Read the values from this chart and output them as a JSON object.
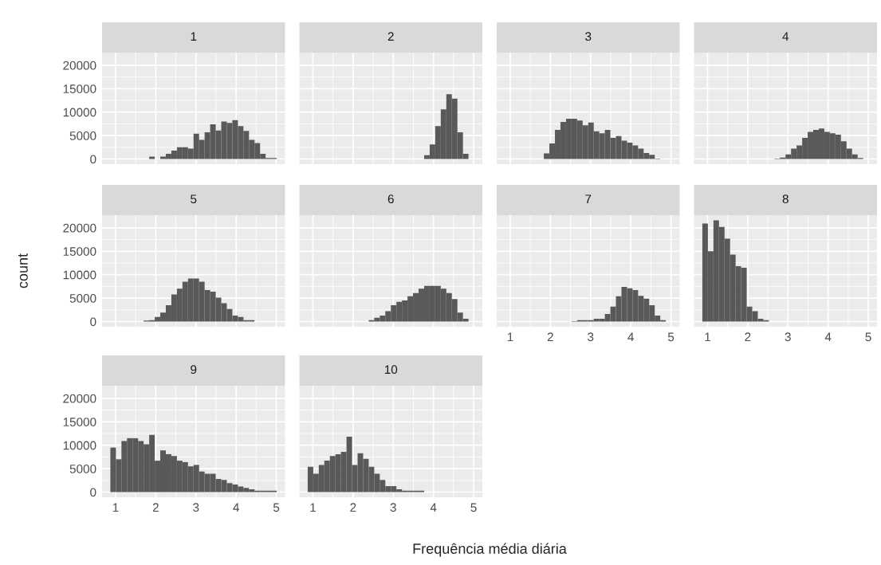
{
  "chart_data": [
    {
      "type": "histogram",
      "title": "1",
      "color": "#595959",
      "grid": true,
      "tick_labels": "y",
      "xlim": [
        0.663,
        5.217
      ],
      "ylim": [
        -1100,
        22700
      ],
      "xticks": [
        1,
        2,
        3,
        4,
        5
      ],
      "yticks": [
        0,
        5000,
        10000,
        15000,
        20000
      ],
      "bins": [
        0.87,
        1.008,
        1.146,
        1.284,
        1.422,
        1.56,
        1.698,
        1.836,
        1.974,
        2.112,
        2.25,
        2.388,
        2.526,
        2.664,
        2.802,
        2.94,
        3.078,
        3.216,
        3.354,
        3.492,
        3.63,
        3.768,
        3.906,
        4.044,
        4.182,
        4.32,
        4.458,
        4.596,
        4.734,
        4.872,
        5.01
      ],
      "values": [
        0,
        0,
        0,
        0,
        0,
        0,
        0,
        500,
        0,
        500,
        1100,
        1800,
        2500,
        2500,
        2200,
        5400,
        4100,
        5700,
        7400,
        6100,
        8000,
        7700,
        8300,
        7000,
        6000,
        4100,
        3400,
        1100,
        200,
        200
      ]
    },
    {
      "type": "histogram",
      "title": "2",
      "color": "#595959",
      "grid": true,
      "tick_labels": false,
      "xlim": [
        0.663,
        5.217
      ],
      "ylim": [
        -1100,
        22700
      ],
      "xticks": [
        1,
        2,
        3,
        4,
        5
      ],
      "yticks": [
        0,
        5000,
        10000,
        15000,
        20000
      ],
      "bins": [
        0.87,
        1.008,
        1.146,
        1.284,
        1.422,
        1.56,
        1.698,
        1.836,
        1.974,
        2.112,
        2.25,
        2.388,
        2.526,
        2.664,
        2.802,
        2.94,
        3.078,
        3.216,
        3.354,
        3.492,
        3.63,
        3.768,
        3.906,
        4.044,
        4.182,
        4.32,
        4.458,
        4.596,
        4.734,
        4.872,
        5.01
      ],
      "values": [
        0,
        0,
        0,
        0,
        0,
        0,
        0,
        0,
        0,
        0,
        0,
        0,
        0,
        0,
        0,
        0,
        0,
        0,
        0,
        0,
        0,
        800,
        3100,
        7000,
        10600,
        13800,
        12900,
        5700,
        1100,
        0
      ]
    },
    {
      "type": "histogram",
      "title": "3",
      "color": "#595959",
      "grid": true,
      "tick_labels": false,
      "xlim": [
        0.663,
        5.217
      ],
      "ylim": [
        -1100,
        22700
      ],
      "xticks": [
        1,
        2,
        3,
        4,
        5
      ],
      "yticks": [
        0,
        5000,
        10000,
        15000,
        20000
      ],
      "bins": [
        0.87,
        1.008,
        1.146,
        1.284,
        1.422,
        1.56,
        1.698,
        1.836,
        1.974,
        2.112,
        2.25,
        2.388,
        2.526,
        2.664,
        2.802,
        2.94,
        3.078,
        3.216,
        3.354,
        3.492,
        3.63,
        3.768,
        3.906,
        4.044,
        4.182,
        4.32,
        4.458,
        4.596,
        4.734,
        4.872,
        5.01
      ],
      "values": [
        0,
        0,
        0,
        0,
        0,
        0,
        0,
        1200,
        3300,
        6200,
        7900,
        8600,
        8600,
        8200,
        7200,
        7800,
        5900,
        5500,
        6200,
        4500,
        4900,
        3900,
        3500,
        2900,
        2200,
        1300,
        900,
        100,
        0,
        0
      ]
    },
    {
      "type": "histogram",
      "title": "4",
      "color": "#595959",
      "grid": true,
      "tick_labels": false,
      "xlim": [
        0.663,
        5.217
      ],
      "ylim": [
        -1100,
        22700
      ],
      "xticks": [
        1,
        2,
        3,
        4,
        5
      ],
      "yticks": [
        0,
        5000,
        10000,
        15000,
        20000
      ],
      "bins": [
        0.87,
        1.008,
        1.146,
        1.284,
        1.422,
        1.56,
        1.698,
        1.836,
        1.974,
        2.112,
        2.25,
        2.388,
        2.526,
        2.664,
        2.802,
        2.94,
        3.078,
        3.216,
        3.354,
        3.492,
        3.63,
        3.768,
        3.906,
        4.044,
        4.182,
        4.32,
        4.458,
        4.596,
        4.734,
        4.872,
        5.01
      ],
      "values": [
        0,
        0,
        0,
        0,
        0,
        0,
        0,
        0,
        0,
        0,
        0,
        0,
        0,
        100,
        300,
        1000,
        2200,
        2900,
        4500,
        5800,
        6200,
        6500,
        5800,
        5500,
        5200,
        3800,
        2200,
        1000,
        200,
        0
      ]
    },
    {
      "type": "histogram",
      "title": "5",
      "ylabel": "count",
      "color": "#595959",
      "grid": true,
      "tick_labels": "y",
      "xlim": [
        0.663,
        5.217
      ],
      "ylim": [
        -1100,
        22700
      ],
      "xticks": [
        1,
        2,
        3,
        4,
        5
      ],
      "yticks": [
        0,
        5000,
        10000,
        15000,
        20000
      ],
      "bins": [
        0.87,
        1.008,
        1.146,
        1.284,
        1.422,
        1.56,
        1.698,
        1.836,
        1.974,
        2.112,
        2.25,
        2.388,
        2.526,
        2.664,
        2.802,
        2.94,
        3.078,
        3.216,
        3.354,
        3.492,
        3.63,
        3.768,
        3.906,
        4.044,
        4.182,
        4.32,
        4.458,
        4.596,
        4.734,
        4.872,
        5.01
      ],
      "values": [
        0,
        0,
        0,
        0,
        0,
        0,
        200,
        300,
        1000,
        1900,
        3500,
        5800,
        7000,
        8500,
        9200,
        9200,
        8500,
        6700,
        6400,
        5100,
        3900,
        2700,
        1300,
        1000,
        300,
        300,
        0,
        0,
        0,
        0
      ]
    },
    {
      "type": "histogram",
      "title": "6",
      "color": "#595959",
      "grid": true,
      "tick_labels": false,
      "xlim": [
        0.663,
        5.217
      ],
      "ylim": [
        -1100,
        22700
      ],
      "xticks": [
        1,
        2,
        3,
        4,
        5
      ],
      "yticks": [
        0,
        5000,
        10000,
        15000,
        20000
      ],
      "bins": [
        0.87,
        1.008,
        1.146,
        1.284,
        1.422,
        1.56,
        1.698,
        1.836,
        1.974,
        2.112,
        2.25,
        2.388,
        2.526,
        2.664,
        2.802,
        2.94,
        3.078,
        3.216,
        3.354,
        3.492,
        3.63,
        3.768,
        3.906,
        4.044,
        4.182,
        4.32,
        4.458,
        4.596,
        4.734,
        4.872,
        5.01
      ],
      "values": [
        0,
        0,
        0,
        0,
        0,
        0,
        0,
        0,
        0,
        0,
        0,
        300,
        800,
        1300,
        2200,
        3500,
        4200,
        4500,
        5400,
        6100,
        7000,
        7600,
        7600,
        7600,
        7000,
        6100,
        4800,
        1900,
        600,
        0
      ]
    },
    {
      "type": "histogram",
      "title": "7",
      "color": "#595959",
      "grid": true,
      "tick_labels": "x",
      "xlim": [
        0.663,
        5.217
      ],
      "ylim": [
        -1100,
        22700
      ],
      "xticks": [
        1,
        2,
        3,
        4,
        5
      ],
      "yticks": [
        0,
        5000,
        10000,
        15000,
        20000
      ],
      "bins": [
        0.87,
        1.008,
        1.146,
        1.284,
        1.422,
        1.56,
        1.698,
        1.836,
        1.974,
        2.112,
        2.25,
        2.388,
        2.526,
        2.664,
        2.802,
        2.94,
        3.078,
        3.216,
        3.354,
        3.492,
        3.63,
        3.768,
        3.906,
        4.044,
        4.182,
        4.32,
        4.458,
        4.596,
        4.734,
        4.872,
        5.01
      ],
      "values": [
        0,
        0,
        0,
        0,
        0,
        0,
        0,
        0,
        0,
        0,
        0,
        0,
        100,
        300,
        300,
        300,
        600,
        600,
        1600,
        3200,
        5400,
        7400,
        7100,
        6700,
        5500,
        4900,
        3500,
        1300,
        300,
        0
      ]
    },
    {
      "type": "histogram",
      "title": "8",
      "color": "#595959",
      "grid": true,
      "tick_labels": "x",
      "xlim": [
        0.663,
        5.217
      ],
      "ylim": [
        -1100,
        22700
      ],
      "xticks": [
        1,
        2,
        3,
        4,
        5
      ],
      "yticks": [
        0,
        5000,
        10000,
        15000,
        20000
      ],
      "bins": [
        0.87,
        1.008,
        1.146,
        1.284,
        1.422,
        1.56,
        1.698,
        1.836,
        1.974,
        2.112,
        2.25,
        2.388,
        2.526,
        2.664,
        2.802,
        2.94,
        3.078,
        3.216,
        3.354,
        3.492,
        3.63,
        3.768,
        3.906,
        4.044,
        4.182,
        4.32,
        4.458,
        4.596,
        4.734,
        4.872,
        5.01
      ],
      "values": [
        20900,
        15000,
        21600,
        20200,
        17700,
        14300,
        11800,
        11500,
        3200,
        2200,
        600,
        300,
        0,
        0,
        0,
        0,
        0,
        0,
        0,
        0,
        0,
        0,
        0,
        0,
        0,
        0,
        0,
        0,
        0,
        0
      ]
    },
    {
      "type": "histogram",
      "title": "9",
      "color": "#595959",
      "grid": true,
      "xlim": [
        0.663,
        5.217
      ],
      "ylim": [
        -1100,
        22700
      ],
      "xticks": [
        1,
        2,
        3,
        4,
        5
      ],
      "yticks": [
        0,
        5000,
        10000,
        15000,
        20000
      ],
      "bins": [
        0.87,
        1.008,
        1.146,
        1.284,
        1.422,
        1.56,
        1.698,
        1.836,
        1.974,
        2.112,
        2.25,
        2.388,
        2.526,
        2.664,
        2.802,
        2.94,
        3.078,
        3.216,
        3.354,
        3.492,
        3.63,
        3.768,
        3.906,
        4.044,
        4.182,
        4.32,
        4.458,
        4.596,
        4.734,
        4.872,
        5.01
      ],
      "values": [
        9500,
        7000,
        10900,
        11500,
        11500,
        10900,
        10200,
        12200,
        6700,
        8900,
        8100,
        7700,
        6700,
        6400,
        5500,
        5800,
        4400,
        3900,
        3900,
        2800,
        2600,
        1900,
        1600,
        1200,
        900,
        600,
        300,
        300,
        300,
        300
      ]
    },
    {
      "type": "histogram",
      "title": "10",
      "xlabel": "Frequência média diária",
      "color": "#595959",
      "grid": true,
      "tick_labels": "x",
      "xlim": [
        0.663,
        5.217
      ],
      "ylim": [
        -1100,
        22700
      ],
      "xticks": [
        1,
        2,
        3,
        4,
        5
      ],
      "yticks": [
        0,
        5000,
        10000,
        15000,
        20000
      ],
      "bins": [
        0.87,
        1.008,
        1.146,
        1.284,
        1.422,
        1.56,
        1.698,
        1.836,
        1.974,
        2.112,
        2.25,
        2.388,
        2.526,
        2.664,
        2.802,
        2.94,
        3.078,
        3.216,
        3.354,
        3.492,
        3.63,
        3.768,
        3.906,
        4.044,
        4.182,
        4.32,
        4.458,
        4.596,
        4.734,
        4.872,
        5.01
      ],
      "values": [
        5400,
        3900,
        5800,
        6700,
        7700,
        8100,
        8600,
        11800,
        5800,
        8300,
        7100,
        5400,
        3900,
        2600,
        1300,
        1300,
        600,
        300,
        300,
        300,
        300,
        0,
        0,
        0,
        0,
        0,
        0,
        0,
        0,
        0
      ]
    }
  ]
}
